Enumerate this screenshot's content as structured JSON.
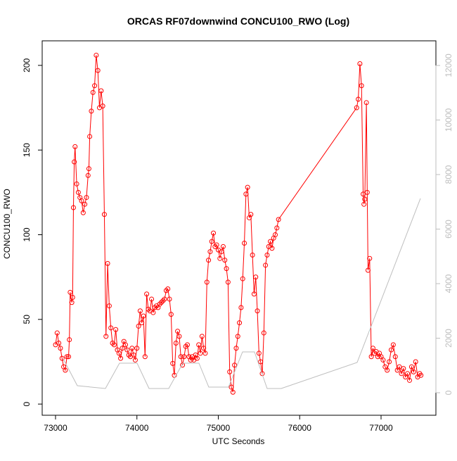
{
  "chart_data": {
    "type": "line",
    "title": "ORCAS RF07downwind CONCU100_RWO (Log)",
    "x_label": "UTC Seconds",
    "y_label": "CONCU100_RWO",
    "xlim": [
      72836,
      77674
    ],
    "ylim": [
      -6.6,
      214.5
    ],
    "y2lim": [
      -826,
      12903
    ],
    "xticks": [
      73000,
      74000,
      75000,
      76000,
      77000
    ],
    "yticks": [
      0,
      50,
      100,
      150,
      200
    ],
    "y2ticks": [
      0,
      2000,
      4000,
      6000,
      8000,
      10000,
      12000
    ],
    "series": [
      {
        "color": "#ff0000",
        "marker": "circle",
        "x": [
          73000,
          73020,
          73040,
          73060,
          73080,
          73100,
          73120,
          73140,
          73160,
          73170,
          73180,
          73200,
          73210,
          73220,
          73230,
          73240,
          73260,
          73280,
          73300,
          73320,
          73340,
          73360,
          73380,
          73400,
          73410,
          73420,
          73440,
          73460,
          73480,
          73500,
          73520,
          73540,
          73560,
          73580,
          73600,
          73620,
          73640,
          73660,
          73680,
          73700,
          73720,
          73740,
          73760,
          73780,
          73800,
          73820,
          73840,
          73860,
          73880,
          73900,
          73920,
          73940,
          73960,
          73980,
          74000,
          74020,
          74040,
          74060,
          74080,
          74100,
          74120,
          74140,
          74160,
          74180,
          74200,
          74220,
          74240,
          74260,
          74280,
          74300,
          74320,
          74340,
          74360,
          74380,
          74400,
          74420,
          74440,
          74460,
          74480,
          74500,
          74520,
          74540,
          74560,
          74580,
          74600,
          74620,
          74640,
          74660,
          74680,
          74700,
          74720,
          74740,
          74760,
          74780,
          74800,
          74820,
          74840,
          74860,
          74880,
          74900,
          74920,
          74940,
          74960,
          74980,
          75000,
          75020,
          75040,
          75060,
          75080,
          75100,
          75120,
          75140,
          75160,
          75180,
          75200,
          75220,
          75240,
          75260,
          75280,
          75300,
          75320,
          75340,
          75360,
          75380,
          75400,
          75420,
          75440,
          75460,
          75480,
          75500,
          75520,
          75540,
          75560,
          75580,
          75600,
          75620,
          75640,
          75660,
          75680,
          75700,
          75720,
          75740,
          76700,
          76720,
          76740,
          76760,
          76780,
          76790,
          76800,
          76820,
          76830,
          76840,
          76860,
          76880,
          76900,
          76920,
          76940,
          76960,
          76980,
          77000,
          77025,
          77050,
          77075,
          77100,
          77125,
          77150,
          77175,
          77200,
          77225,
          77250,
          77275,
          77300,
          77325,
          77350,
          77375,
          77400,
          77425,
          77450,
          77475,
          77490
        ],
        "values": [
          35,
          42,
          36,
          33,
          27,
          22,
          20,
          28,
          28,
          38,
          66,
          60,
          63,
          116,
          143,
          152,
          130,
          125,
          122,
          120,
          113,
          118,
          122,
          135,
          139,
          158,
          173,
          184,
          188,
          206,
          197,
          175,
          185,
          176,
          112,
          40,
          83,
          58,
          45,
          36,
          35,
          44,
          32,
          30,
          27,
          33,
          37,
          35,
          32,
          29,
          28,
          33,
          29,
          26,
          33,
          46,
          55,
          48,
          52,
          28,
          65,
          56,
          55,
          62,
          54,
          57,
          58,
          57,
          59,
          60,
          61,
          62,
          67,
          68,
          62,
          53,
          24,
          17,
          36,
          43,
          40,
          28,
          23,
          28,
          34,
          35,
          28,
          26,
          28,
          26,
          29,
          27,
          35,
          30,
          40,
          33,
          30,
          72,
          85,
          90,
          96,
          101,
          93,
          94,
          91,
          86,
          90,
          93,
          85,
          80,
          72,
          19,
          10,
          7,
          23,
          33,
          40,
          48,
          57,
          74,
          95,
          124,
          128,
          110,
          112,
          88,
          65,
          75,
          55,
          30,
          25,
          18,
          42,
          82,
          88,
          93,
          96,
          92,
          98,
          100,
          104,
          109,
          175,
          180,
          201,
          188,
          124,
          118,
          121,
          178,
          125,
          79,
          86,
          28,
          33,
          30,
          31,
          28,
          30,
          28,
          26,
          22,
          20,
          25,
          32,
          35,
          28,
          20,
          22,
          18,
          21,
          16,
          18,
          14,
          22,
          19,
          25,
          16,
          18,
          17
        ]
      },
      {
        "color": "#bebebe",
        "axis": "y2",
        "x": [
          73095,
          73268,
          73613,
          73786,
          74002,
          74149,
          74391,
          74564,
          74762,
          74883,
          75125,
          75298,
          75445,
          75600,
          75773,
          76706,
          77484
        ],
        "values": [
          1239,
          258,
          155,
          1084,
          1084,
          155,
          155,
          1084,
          1084,
          206,
          206,
          1497,
          1497,
          155,
          155,
          1110,
          7123
        ]
      }
    ]
  }
}
